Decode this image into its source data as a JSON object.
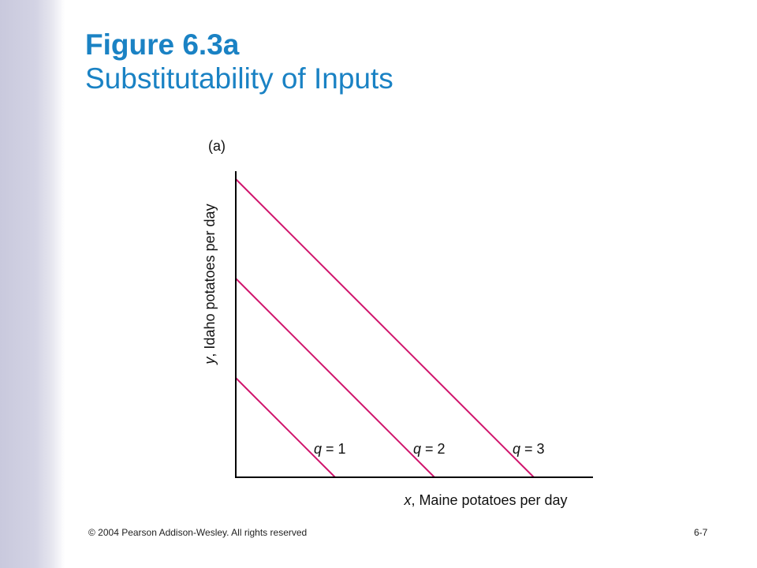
{
  "slide": {
    "title_main": "Figure 6.3a",
    "title_sub": "Substitutability of Inputs",
    "footer_left": "© 2004 Pearson Addison-Wesley. All rights reserved",
    "footer_right": "6-7"
  },
  "colors": {
    "title": "#1a82c4",
    "isoquant": "#d0146c",
    "axis": "#000000",
    "sidebar": "#cfcfe2"
  },
  "chart_data": {
    "type": "line",
    "panel_label": "(a)",
    "xlabel_var": "x",
    "xlabel_rest": ", Maine potatoes per day",
    "ylabel_var": "y",
    "ylabel_rest": ", Idaho potatoes per day",
    "xlim": [
      0,
      3.25
    ],
    "ylim": [
      0,
      3.25
    ],
    "grid": false,
    "series": [
      {
        "name": "q = 1",
        "label_var": "q",
        "label_rest": " = 1",
        "x": [
          0,
          1
        ],
        "y": [
          1,
          0
        ]
      },
      {
        "name": "q = 2",
        "label_var": "q",
        "label_rest": " = 2",
        "x": [
          0,
          2
        ],
        "y": [
          2,
          0
        ]
      },
      {
        "name": "q = 3",
        "label_var": "q",
        "label_rest": " = 3",
        "x": [
          0,
          3
        ],
        "y": [
          3,
          0
        ]
      }
    ]
  }
}
